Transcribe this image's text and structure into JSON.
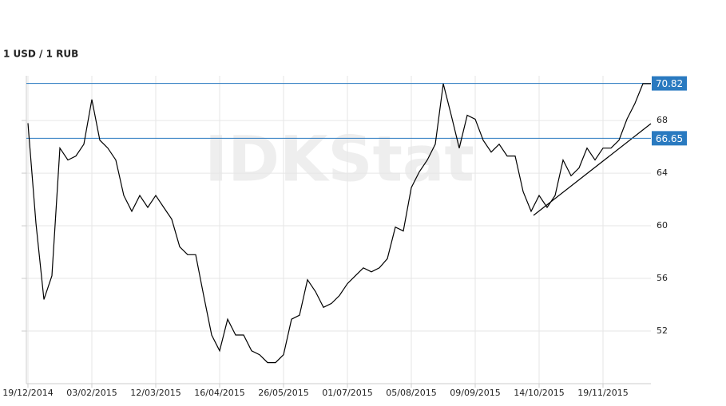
{
  "chart_data": {
    "type": "line",
    "title": "1 USD / 1 RUB",
    "watermark": "IDKStat",
    "categories": [
      "19/12/2014",
      null,
      null,
      null,
      null,
      null,
      null,
      null,
      "03/02/2015",
      null,
      null,
      null,
      null,
      null,
      null,
      null,
      "12/03/2015",
      null,
      null,
      null,
      null,
      null,
      null,
      null,
      "16/04/2015",
      null,
      null,
      null,
      null,
      null,
      null,
      null,
      "26/05/2015",
      null,
      null,
      null,
      null,
      null,
      null,
      null,
      "01/07/2015",
      null,
      null,
      null,
      null,
      null,
      null,
      null,
      "05/08/2015",
      null,
      null,
      null,
      null,
      null,
      null,
      null,
      "09/09/2015",
      null,
      null,
      null,
      null,
      null,
      null,
      null,
      "14/10/2015",
      null,
      null,
      null,
      null,
      null,
      null,
      null,
      "19/11/2015",
      null,
      null,
      null,
      null,
      null,
      null
    ],
    "values": [
      67.8,
      60.2,
      54.4,
      56.2,
      65.9,
      65.0,
      65.3,
      66.2,
      69.6,
      66.5,
      65.9,
      65.0,
      62.3,
      61.1,
      62.3,
      61.4,
      62.3,
      61.4,
      60.5,
      58.4,
      57.8,
      57.8,
      54.7,
      51.7,
      50.5,
      52.9,
      51.7,
      51.7,
      50.5,
      50.2,
      49.6,
      49.6,
      50.2,
      52.9,
      53.2,
      55.9,
      55.0,
      53.8,
      54.1,
      54.7,
      55.6,
      56.2,
      56.8,
      56.5,
      56.8,
      57.5,
      59.9,
      59.6,
      62.9,
      64.1,
      65.0,
      66.2,
      70.8,
      68.4,
      65.9,
      68.4,
      68.1,
      66.5,
      65.6,
      66.2,
      65.3,
      65.3,
      62.6,
      61.1,
      62.3,
      61.4,
      62.3,
      65.0,
      63.8,
      64.4,
      65.9,
      65.0,
      65.9,
      65.9,
      66.5,
      68.1,
      69.3,
      70.8,
      70.8
    ],
    "color": "#000000",
    "ylim": [
      48,
      71.4
    ],
    "yticks": [
      52,
      56,
      60,
      64,
      68
    ],
    "grid": true,
    "levels": [
      70.82,
      66.65
    ],
    "level_color": "#2a7ac0"
  }
}
